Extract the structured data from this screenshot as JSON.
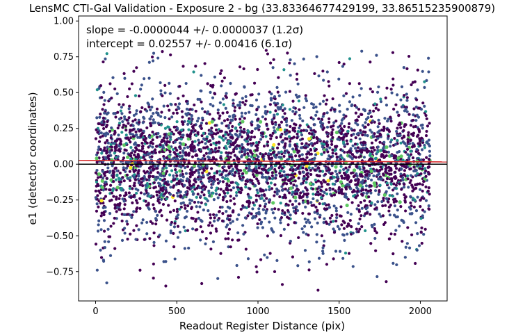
{
  "chart_data": {
    "type": "scatter",
    "title": "LensMC CTI-Gal Validation - Exposure 2 - bg (33.83364677429199, 33.86515235900879)",
    "xlabel": "Readout Register Distance (pix)",
    "ylabel": "e1 (detector coordinates)",
    "xlim": [
      -105,
      2165
    ],
    "ylim": [
      -0.955,
      1.035
    ],
    "xticks": [
      0,
      500,
      1000,
      1500,
      2000
    ],
    "xtick_labels": [
      "0",
      "500",
      "1000",
      "1500",
      "2000"
    ],
    "yticks": [
      -0.75,
      -0.5,
      -0.25,
      0.0,
      0.25,
      0.5,
      0.75,
      1.0
    ],
    "ytick_labels": [
      "−0.75",
      "−0.50",
      "−0.25",
      "0.00",
      "0.25",
      "0.50",
      "0.75",
      "1.00"
    ],
    "grid": false,
    "annotations": [
      "slope = -0.0000044 +/- 0.0000037 (1.2σ)",
      "intercept = 0.02557 +/- 0.00416 (6.1σ)"
    ],
    "reference_lines": [
      {
        "kind": "horizontal",
        "y": 0.0,
        "color": "#000000"
      },
      {
        "kind": "fit",
        "slope": -4.4e-06,
        "intercept": 0.02557,
        "color": "#d62728"
      }
    ],
    "colormap": [
      "#440154",
      "#3b528b",
      "#21918c",
      "#5ec962",
      "#fde725"
    ],
    "point_color": "#3b528b",
    "series": [
      {
        "x_range": [
          0,
          2060
        ],
        "y_center": 0.0,
        "y_spread": 0.26,
        "points": [
          {
            "x": 20,
            "y": 0.12
          },
          {
            "x": 60,
            "y": 0.15
          },
          {
            "x": 90,
            "y": -0.05
          },
          {
            "x": 120,
            "y": 0.22
          },
          {
            "x": 150,
            "y": 0.09
          },
          {
            "x": 180,
            "y": 0.1
          },
          {
            "x": 200,
            "y": -0.1
          },
          {
            "x": 230,
            "y": 0.3
          },
          {
            "x": 250,
            "y": 0.05
          },
          {
            "x": 280,
            "y": -0.2
          },
          {
            "x": 310,
            "y": 0.18
          },
          {
            "x": 340,
            "y": -0.02
          },
          {
            "x": 370,
            "y": 0.08
          },
          {
            "x": 400,
            "y": -0.15
          },
          {
            "x": 430,
            "y": 0.25
          },
          {
            "x": 460,
            "y": 0.02
          },
          {
            "x": 500,
            "y": -0.08
          },
          {
            "x": 540,
            "y": 0.14
          },
          {
            "x": 580,
            "y": -0.25
          },
          {
            "x": 620,
            "y": 0.2
          },
          {
            "x": 660,
            "y": 0.04
          },
          {
            "x": 700,
            "y": -0.12
          },
          {
            "x": 740,
            "y": 0.11
          },
          {
            "x": 780,
            "y": -0.3
          },
          {
            "x": 820,
            "y": 0.16
          },
          {
            "x": 860,
            "y": 0.0
          },
          {
            "x": 900,
            "y": -0.18
          },
          {
            "x": 940,
            "y": 0.23
          },
          {
            "x": 980,
            "y": 0.06
          },
          {
            "x": 1020,
            "y": -0.06
          },
          {
            "x": 1060,
            "y": 0.13
          },
          {
            "x": 1100,
            "y": -0.22
          },
          {
            "x": 1140,
            "y": 0.19
          },
          {
            "x": 1180,
            "y": 0.03
          },
          {
            "x": 1220,
            "y": -0.09
          },
          {
            "x": 1260,
            "y": 0.27
          },
          {
            "x": 1300,
            "y": 0.07
          },
          {
            "x": 1340,
            "y": -0.14
          },
          {
            "x": 1380,
            "y": 0.17
          },
          {
            "x": 1420,
            "y": -0.03
          },
          {
            "x": 1460,
            "y": 0.1
          },
          {
            "x": 1500,
            "y": -0.2
          },
          {
            "x": 1540,
            "y": 0.21
          },
          {
            "x": 1580,
            "y": 0.01
          },
          {
            "x": 1620,
            "y": -0.11
          },
          {
            "x": 1660,
            "y": 0.15
          },
          {
            "x": 1700,
            "y": -0.27
          },
          {
            "x": 1740,
            "y": 0.12
          },
          {
            "x": 1780,
            "y": 0.05
          },
          {
            "x": 1820,
            "y": -0.07
          },
          {
            "x": 1860,
            "y": 0.2
          },
          {
            "x": 1900,
            "y": -0.16
          },
          {
            "x": 1940,
            "y": 0.09
          },
          {
            "x": 1980,
            "y": 0.02
          },
          {
            "x": 2020,
            "y": -0.12
          },
          {
            "x": 2050,
            "y": 0.14
          },
          {
            "x": 10,
            "y": -0.74
          },
          {
            "x": 420,
            "y": -0.68
          },
          {
            "x": 880,
            "y": -0.79
          },
          {
            "x": 1150,
            "y": -0.84
          },
          {
            "x": 1370,
            "y": -0.88
          },
          {
            "x": 1790,
            "y": -0.82
          },
          {
            "x": 10,
            "y": 0.52
          },
          {
            "x": 650,
            "y": 0.62
          },
          {
            "x": 1160,
            "y": 0.66
          },
          {
            "x": 1730,
            "y": 0.76
          },
          {
            "x": 2050,
            "y": 0.74
          },
          {
            "x": 1500,
            "y": 0.71
          },
          {
            "x": 30,
            "y": -0.6
          },
          {
            "x": 940,
            "y": -0.66
          },
          {
            "x": 1980,
            "y": -0.6
          },
          {
            "x": 330,
            "y": 0.6
          },
          {
            "x": 780,
            "y": 0.58
          },
          {
            "x": 1400,
            "y": 0.65
          }
        ]
      }
    ]
  }
}
